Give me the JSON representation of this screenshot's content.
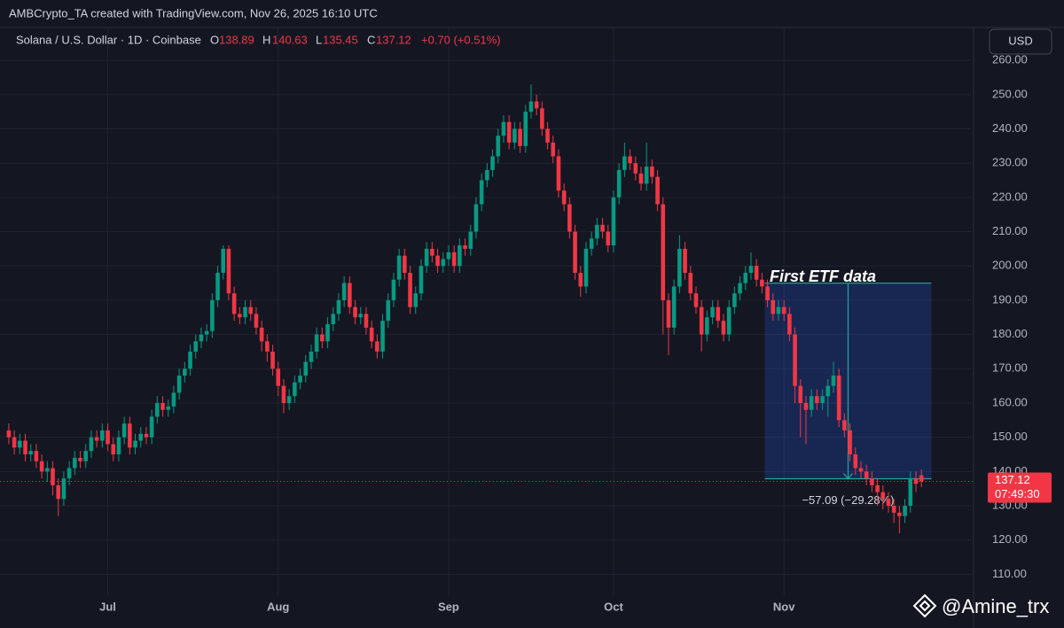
{
  "header": {
    "credit": "AMBCrypto_TA created with TradingView.com, Nov 26, 2025 16:10 UTC",
    "symbol": "Solana / U.S. Dollar · 1D · Coinbase",
    "ohlc_labels": [
      "O",
      "H",
      "L",
      "C"
    ],
    "change": "+0.70 (+0.51%)"
  },
  "currency": "USD",
  "watermark": "@Amine_trx",
  "chart_data": {
    "type": "candlestick",
    "up_color": "#089981",
    "down_color": "#f23645",
    "xlim": [
      -1.6,
      175
    ],
    "xticks": [
      {
        "value": 18,
        "label": "Jul"
      },
      {
        "value": 49,
        "label": "Aug"
      },
      {
        "value": 80,
        "label": "Sep"
      },
      {
        "value": 110,
        "label": "Oct"
      },
      {
        "value": 141,
        "label": "Nov"
      }
    ],
    "ylim": [
      103.9,
      269.6
    ],
    "yticks": [
      {
        "value": 110,
        "label": "110.00"
      },
      {
        "value": 120,
        "label": "120.00"
      },
      {
        "value": 130,
        "label": "130.00"
      },
      {
        "value": 140,
        "label": "140.00"
      },
      {
        "value": 150,
        "label": "150.00"
      },
      {
        "value": 160,
        "label": "160.00"
      },
      {
        "value": 170,
        "label": "170.00"
      },
      {
        "value": 180,
        "label": "180.00"
      },
      {
        "value": 190,
        "label": "190.00"
      },
      {
        "value": 200,
        "label": "200.00"
      },
      {
        "value": 210,
        "label": "210.00"
      },
      {
        "value": 220,
        "label": "220.00"
      },
      {
        "value": 230,
        "label": "230.00"
      },
      {
        "value": 240,
        "label": "240.00"
      },
      {
        "value": 250,
        "label": "250.00"
      },
      {
        "value": 260,
        "label": "260.00"
      }
    ],
    "grid": true,
    "candles": [
      [
        152,
        154,
        148,
        150
      ],
      [
        150,
        152,
        145,
        147
      ],
      [
        147,
        151,
        145,
        149
      ],
      [
        149,
        151,
        143,
        145
      ],
      [
        145,
        148,
        143,
        146
      ],
      [
        146,
        148,
        141,
        143
      ],
      [
        143,
        145,
        138,
        140
      ],
      [
        140,
        143,
        137,
        141
      ],
      [
        141,
        143,
        133,
        136
      ],
      [
        136,
        138,
        127,
        132
      ],
      [
        132,
        140,
        130,
        138
      ],
      [
        138,
        143,
        136,
        141
      ],
      [
        141,
        146,
        139,
        144
      ],
      [
        144,
        146,
        141,
        143
      ],
      [
        143,
        148,
        141,
        146
      ],
      [
        146,
        152,
        144,
        150
      ],
      [
        150,
        152,
        147,
        149
      ],
      [
        149,
        154,
        147,
        152
      ],
      [
        152,
        154,
        146,
        148
      ],
      [
        148,
        150,
        143,
        145
      ],
      [
        145,
        152,
        143,
        150
      ],
      [
        150,
        156,
        148,
        154
      ],
      [
        154,
        156,
        145,
        147
      ],
      [
        147,
        151,
        145,
        149
      ],
      [
        149,
        153,
        147,
        151
      ],
      [
        151,
        153,
        148,
        150
      ],
      [
        150,
        158,
        148,
        156
      ],
      [
        156,
        162,
        154,
        160
      ],
      [
        160,
        162,
        156,
        158
      ],
      [
        158,
        161,
        156,
        159
      ],
      [
        159,
        165,
        157,
        163
      ],
      [
        163,
        170,
        161,
        168
      ],
      [
        168,
        172,
        166,
        170
      ],
      [
        170,
        177,
        168,
        175
      ],
      [
        175,
        180,
        173,
        178
      ],
      [
        178,
        182,
        176,
        180
      ],
      [
        180,
        183,
        178,
        181
      ],
      [
        181,
        192,
        179,
        190
      ],
      [
        190,
        200,
        188,
        198
      ],
      [
        198,
        206,
        196,
        205
      ],
      [
        205,
        206,
        190,
        192
      ],
      [
        192,
        194,
        184,
        186
      ],
      [
        186,
        188,
        183,
        185
      ],
      [
        185,
        190,
        183,
        188
      ],
      [
        188,
        190,
        184,
        186
      ],
      [
        186,
        188,
        180,
        182
      ],
      [
        182,
        184,
        175,
        178
      ],
      [
        178,
        180,
        172,
        175
      ],
      [
        175,
        177,
        168,
        170
      ],
      [
        170,
        172,
        162,
        165
      ],
      [
        165,
        167,
        157,
        160
      ],
      [
        160,
        164,
        158,
        162
      ],
      [
        162,
        168,
        160,
        166
      ],
      [
        166,
        170,
        164,
        168
      ],
      [
        168,
        174,
        166,
        172
      ],
      [
        172,
        177,
        170,
        175
      ],
      [
        175,
        182,
        173,
        180
      ],
      [
        180,
        182,
        176,
        178
      ],
      [
        178,
        185,
        176,
        183
      ],
      [
        183,
        188,
        181,
        186
      ],
      [
        186,
        192,
        184,
        190
      ],
      [
        190,
        197,
        188,
        195
      ],
      [
        195,
        197,
        186,
        188
      ],
      [
        188,
        190,
        183,
        185
      ],
      [
        185,
        188,
        183,
        186
      ],
      [
        186,
        188,
        180,
        182
      ],
      [
        182,
        184,
        176,
        178
      ],
      [
        178,
        180,
        173,
        175
      ],
      [
        175,
        186,
        173,
        184
      ],
      [
        184,
        192,
        182,
        190
      ],
      [
        190,
        198,
        188,
        196
      ],
      [
        196,
        205,
        194,
        203
      ],
      [
        203,
        205,
        196,
        198
      ],
      [
        198,
        200,
        186,
        188
      ],
      [
        188,
        194,
        186,
        192
      ],
      [
        192,
        202,
        190,
        200
      ],
      [
        200,
        207,
        198,
        205
      ],
      [
        205,
        207,
        201,
        203
      ],
      [
        203,
        205,
        198,
        200
      ],
      [
        200,
        204,
        198,
        202
      ],
      [
        202,
        206,
        200,
        204
      ],
      [
        204,
        206,
        198,
        200
      ],
      [
        200,
        208,
        198,
        206
      ],
      [
        206,
        208,
        203,
        205
      ],
      [
        205,
        212,
        203,
        210
      ],
      [
        210,
        220,
        208,
        218
      ],
      [
        218,
        227,
        216,
        225
      ],
      [
        225,
        230,
        223,
        228
      ],
      [
        228,
        234,
        226,
        232
      ],
      [
        232,
        240,
        230,
        238
      ],
      [
        238,
        244,
        236,
        242
      ],
      [
        242,
        244,
        234,
        236
      ],
      [
        236,
        242,
        234,
        240
      ],
      [
        240,
        242,
        233,
        235
      ],
      [
        235,
        247,
        233,
        245
      ],
      [
        245,
        253,
        243,
        248
      ],
      [
        248,
        250,
        244,
        246
      ],
      [
        246,
        248,
        238,
        240
      ],
      [
        240,
        242,
        234,
        236
      ],
      [
        236,
        238,
        230,
        232
      ],
      [
        232,
        234,
        220,
        222
      ],
      [
        222,
        224,
        216,
        218
      ],
      [
        218,
        220,
        208,
        210
      ],
      [
        210,
        212,
        196,
        198
      ],
      [
        198,
        200,
        191,
        194
      ],
      [
        194,
        207,
        192,
        205
      ],
      [
        205,
        210,
        203,
        208
      ],
      [
        208,
        214,
        206,
        212
      ],
      [
        212,
        214,
        208,
        210
      ],
      [
        210,
        212,
        204,
        206
      ],
      [
        206,
        222,
        204,
        220
      ],
      [
        220,
        230,
        218,
        228
      ],
      [
        228,
        236,
        226,
        232
      ],
      [
        232,
        234,
        228,
        230
      ],
      [
        230,
        232,
        225,
        227
      ],
      [
        227,
        229,
        222,
        224
      ],
      [
        224,
        236,
        222,
        229
      ],
      [
        229,
        231,
        224,
        226
      ],
      [
        226,
        228,
        216,
        218
      ],
      [
        218,
        220,
        180,
        190
      ],
      [
        190,
        192,
        174,
        182
      ],
      [
        182,
        196,
        180,
        194
      ],
      [
        194,
        209,
        192,
        205
      ],
      [
        205,
        207,
        196,
        198
      ],
      [
        198,
        200,
        190,
        192
      ],
      [
        192,
        194,
        186,
        188
      ],
      [
        188,
        190,
        175,
        180
      ],
      [
        180,
        187,
        178,
        185
      ],
      [
        185,
        190,
        183,
        188
      ],
      [
        188,
        190,
        182,
        184
      ],
      [
        184,
        186,
        178,
        180
      ],
      [
        180,
        190,
        178,
        188
      ],
      [
        188,
        194,
        186,
        192
      ],
      [
        192,
        197,
        190,
        195
      ],
      [
        195,
        200,
        193,
        198
      ],
      [
        198,
        204,
        196,
        200
      ],
      [
        200,
        202,
        194,
        196
      ],
      [
        196,
        198,
        192,
        194
      ],
      [
        194,
        196,
        188,
        190
      ],
      [
        190,
        192,
        184,
        186
      ],
      [
        186,
        190,
        184,
        188
      ],
      [
        188,
        190,
        184,
        186
      ],
      [
        186,
        188,
        178,
        180
      ],
      [
        180,
        182,
        160,
        165
      ],
      [
        165,
        167,
        150,
        160
      ],
      [
        160,
        162,
        148,
        158
      ],
      [
        158,
        164,
        156,
        162
      ],
      [
        162,
        164,
        158,
        160
      ],
      [
        160,
        164,
        158,
        162
      ],
      [
        162,
        167,
        156,
        165
      ],
      [
        165,
        172,
        163,
        168
      ],
      [
        168,
        170,
        153,
        155
      ],
      [
        155,
        157,
        150,
        152
      ],
      [
        152,
        154,
        143,
        145
      ],
      [
        145,
        147,
        139,
        141
      ],
      [
        141,
        143,
        138,
        140
      ],
      [
        140,
        142,
        136,
        138
      ],
      [
        138,
        140,
        134,
        136
      ],
      [
        136,
        138,
        130,
        134
      ],
      [
        134,
        136,
        129,
        132
      ],
      [
        132,
        134,
        128,
        130
      ],
      [
        130,
        132,
        125,
        128
      ],
      [
        128,
        130,
        122,
        127
      ],
      [
        127,
        132,
        125,
        130
      ],
      [
        130,
        140,
        128,
        138
      ],
      [
        138,
        140,
        134,
        136.42
      ],
      [
        138.89,
        140.63,
        135.45,
        137.12
      ]
    ],
    "last_price_countdown": "07:49:30",
    "annotation": "First ETF data",
    "measure": {
      "start": [
        138,
        194.98
      ],
      "end": [
        167,
        137.89
      ],
      "label": "−57.09 (−29.28%)"
    }
  }
}
